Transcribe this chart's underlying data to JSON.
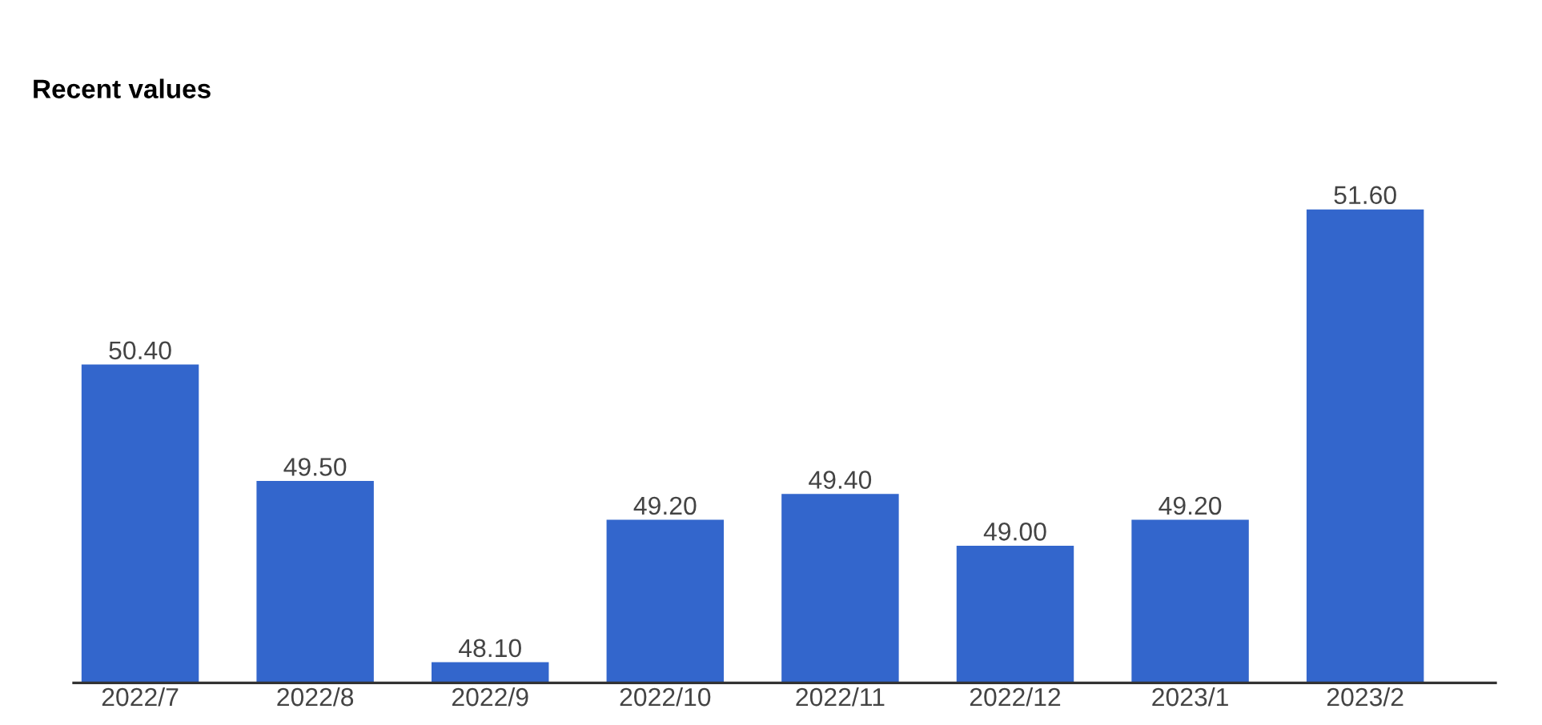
{
  "chart_data": {
    "type": "bar",
    "title": "Recent values",
    "categories": [
      "2022/7",
      "2022/8",
      "2022/9",
      "2022/10",
      "2022/11",
      "2022/12",
      "2023/1",
      "2023/2"
    ],
    "values": [
      50.4,
      49.5,
      48.1,
      49.2,
      49.4,
      49.0,
      49.2,
      51.6
    ],
    "value_labels": [
      "50.40",
      "49.50",
      "48.10",
      "49.20",
      "49.40",
      "49.00",
      "49.20",
      "51.60"
    ],
    "color": "#3366cc",
    "ylim": [
      47.94,
      51.6
    ],
    "tick_labels": "x",
    "grid": false,
    "legend": false
  }
}
